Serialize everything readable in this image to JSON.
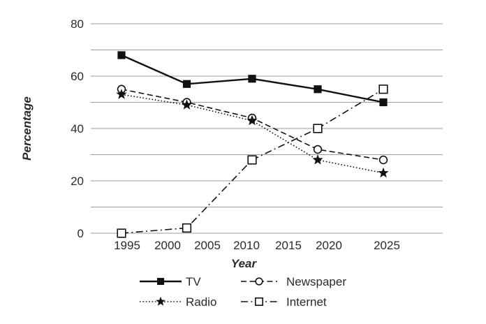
{
  "chart_data": {
    "type": "line",
    "title": "",
    "xlabel": "Year",
    "ylabel": "Percentage",
    "x_tick_labels": [
      "1995",
      "2000",
      "2005",
      "2010",
      "2015",
      "2020",
      "2025"
    ],
    "y_tick_labels": [
      "0",
      "20",
      "40",
      "60",
      "80"
    ],
    "y_tick_values": [
      0,
      20,
      40,
      60,
      80
    ],
    "gridline_values": [
      0,
      10,
      20,
      30,
      40,
      50,
      60,
      70,
      80
    ],
    "ylim": [
      0,
      80
    ],
    "grid": "horizontal",
    "legend_position": "bottom",
    "x": [
      1995,
      2002,
      2010,
      2018,
      2025
    ],
    "series": [
      {
        "name": "TV",
        "marker": "filled-square",
        "line_style": "solid",
        "values": [
          68,
          57,
          59,
          55,
          50
        ]
      },
      {
        "name": "Newspaper",
        "marker": "open-circle",
        "line_style": "dashed",
        "values": [
          55,
          50,
          44,
          32,
          28
        ]
      },
      {
        "name": "Radio",
        "marker": "filled-star",
        "line_style": "dotted",
        "values": [
          53,
          49,
          43,
          28,
          23
        ]
      },
      {
        "name": "Internet",
        "marker": "open-square",
        "line_style": "dash-dot",
        "values": [
          0,
          2,
          28,
          40,
          55
        ]
      }
    ],
    "colors": {
      "series_line": "#111111",
      "grid": "#9b9b9b",
      "text": "#2a2a2a",
      "marker_fill_open": "#ffffff",
      "background": "#ffffff"
    }
  }
}
